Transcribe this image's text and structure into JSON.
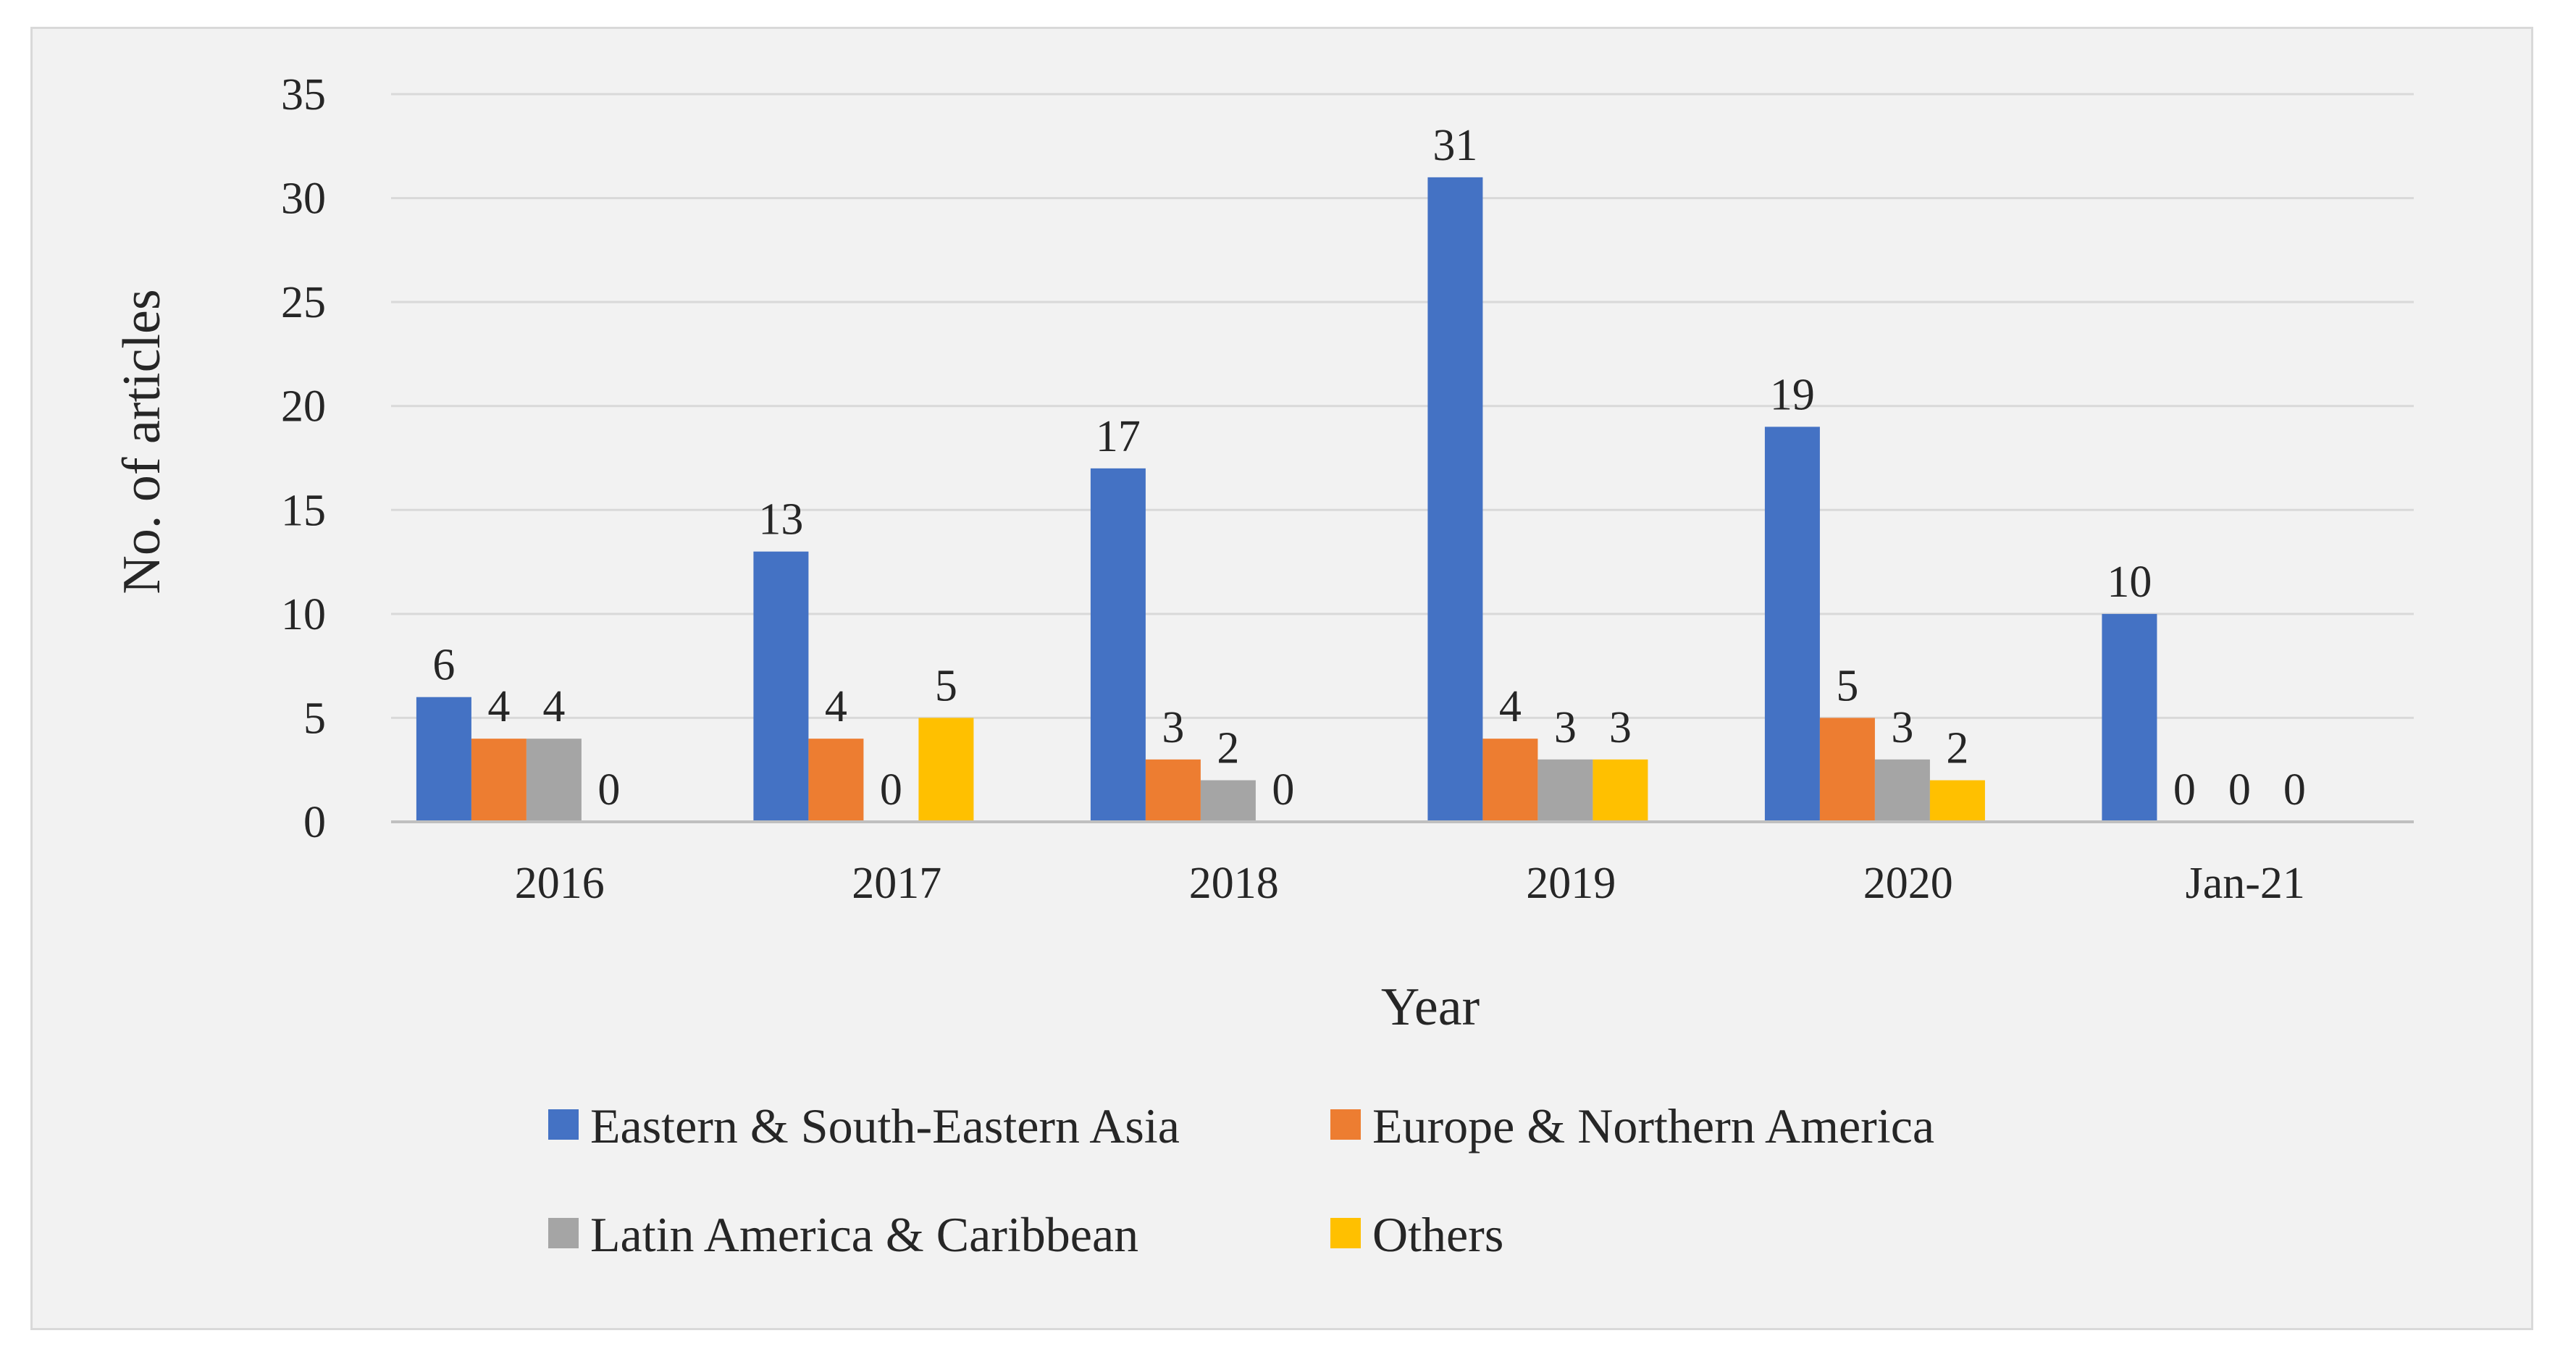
{
  "chart_data": {
    "type": "bar",
    "title": "",
    "xlabel": "Year",
    "ylabel": "No. of articles",
    "categories": [
      "2016",
      "2017",
      "2018",
      "2019",
      "2020",
      "Jan-21"
    ],
    "series": [
      {
        "name": "Eastern & South-Eastern Asia",
        "color": "#4472c4",
        "values": [
          6,
          13,
          17,
          31,
          19,
          10
        ]
      },
      {
        "name": "Europe & Northern America",
        "color": "#ed7d31",
        "values": [
          4,
          4,
          3,
          4,
          5,
          0
        ]
      },
      {
        "name": "Latin America & Caribbean",
        "color": "#a5a5a5",
        "values": [
          4,
          0,
          2,
          3,
          3,
          0
        ]
      },
      {
        "name": "Others",
        "color": "#ffc000",
        "values": [
          0,
          5,
          0,
          3,
          2,
          0
        ]
      }
    ],
    "ylim": [
      0,
      35
    ],
    "yticks": [
      0,
      5,
      10,
      15,
      20,
      25,
      30,
      35
    ],
    "grid": true,
    "legend_position": "bottom",
    "data_labels": true
  }
}
